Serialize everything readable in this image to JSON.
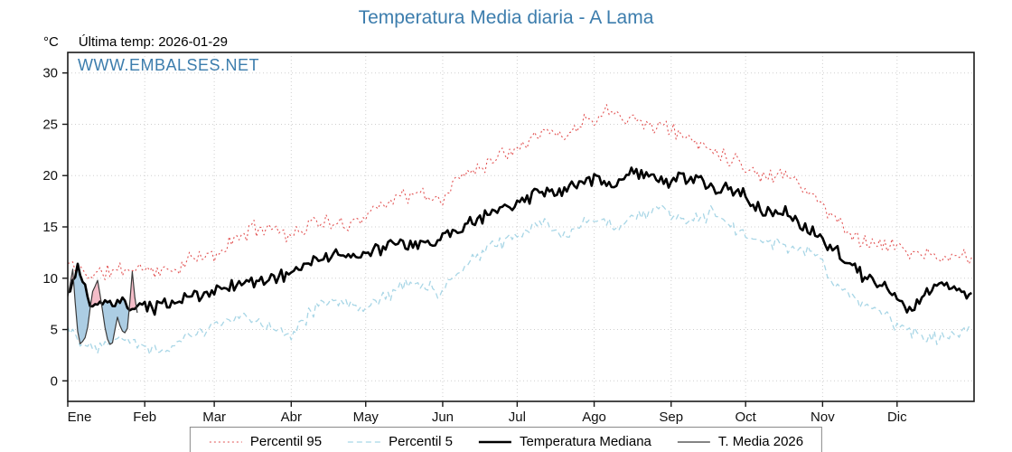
{
  "title": "Temperatura Media diaria - A Lama",
  "y_unit": "°C",
  "last_temp": "Última temp: 2026-01-29",
  "watermark": "WWW.EMBALSES.NET",
  "colors": {
    "title_blue": "#3c7dad",
    "grid": "#cfcfcf",
    "axis": "#1a1a1a",
    "fill_below": "#a3c8e0",
    "fill_above": "#f3b6c2"
  },
  "legend": [
    {
      "label": "Percentil 95"
    },
    {
      "label": "Percentil 5"
    },
    {
      "label": "Temperatura Mediana"
    },
    {
      "label": "T. Media 2026"
    }
  ],
  "chart_data": {
    "type": "line",
    "title": "Temperatura Media diaria - A Lama",
    "x_unit": "day_of_year",
    "months": [
      "Ene",
      "Feb",
      "Mar",
      "Abr",
      "May",
      "Jun",
      "Jul",
      "Ago",
      "Sep",
      "Oct",
      "Nov",
      "Dic"
    ],
    "month_start_days": [
      0,
      31,
      59,
      90,
      120,
      151,
      181,
      212,
      243,
      273,
      304,
      334
    ],
    "days_in_year": 365,
    "ylim": [
      -2,
      32
    ],
    "yticks": [
      0,
      5,
      10,
      15,
      20,
      25,
      30
    ],
    "anchors_x": [
      0,
      4,
      10,
      20,
      30,
      40,
      50,
      60,
      70,
      80,
      90,
      100,
      110,
      120,
      130,
      140,
      150,
      160,
      170,
      180,
      190,
      200,
      210,
      220,
      230,
      240,
      250,
      260,
      270,
      280,
      290,
      300,
      310,
      320,
      330,
      340,
      350,
      364
    ],
    "series": [
      {
        "name": "Percentil 95",
        "color": "#e25252",
        "style": "dotted",
        "width": 1.1,
        "anchor_values": [
          11.4,
          11.0,
          10.3,
          10.8,
          11.0,
          10.6,
          11.8,
          12.3,
          14.3,
          15.2,
          14.2,
          15.6,
          15.0,
          16.2,
          17.8,
          18.2,
          17.6,
          20.3,
          21.4,
          22.8,
          24.4,
          23.8,
          25.6,
          26.5,
          25.2,
          24.8,
          23.6,
          22.6,
          21.4,
          19.8,
          20.4,
          18.0,
          15.6,
          13.6,
          13.2,
          12.6,
          11.8,
          12.3
        ]
      },
      {
        "name": "Percentil 5",
        "color": "#a8d6e6",
        "style": "dashed",
        "width": 1.3,
        "anchor_values": [
          5.4,
          4.2,
          3.2,
          4.6,
          3.4,
          3.0,
          4.6,
          5.4,
          6.2,
          5.6,
          4.6,
          7.2,
          7.6,
          7.2,
          8.6,
          9.8,
          8.4,
          11.2,
          13.0,
          14.2,
          15.2,
          14.4,
          15.6,
          15.2,
          16.2,
          16.8,
          15.2,
          16.6,
          14.4,
          13.6,
          13.0,
          12.6,
          9.2,
          7.4,
          6.2,
          4.6,
          4.2,
          5.4
        ]
      },
      {
        "name": "Temperatura Mediana",
        "color": "#000000",
        "style": "solid",
        "width": 2.6,
        "anchor_values": [
          8.4,
          10.8,
          7.2,
          7.6,
          7.0,
          7.4,
          8.2,
          8.8,
          9.6,
          9.8,
          10.6,
          11.8,
          12.4,
          12.2,
          13.4,
          13.0,
          13.8,
          15.2,
          16.4,
          17.2,
          18.2,
          18.4,
          19.6,
          19.2,
          20.4,
          19.4,
          19.8,
          18.8,
          18.4,
          16.6,
          16.2,
          14.6,
          12.6,
          10.2,
          8.8,
          7.0,
          9.6,
          8.4
        ]
      },
      {
        "name": "T. Media 2026",
        "color": "#3a3a3a",
        "style": "solid",
        "width": 1.2,
        "x": [
          0,
          2,
          4,
          6,
          8,
          10,
          12,
          14,
          16,
          18,
          20,
          22,
          24,
          26,
          28
        ],
        "values": [
          8.2,
          10.8,
          4.6,
          3.4,
          5.2,
          8.8,
          9.6,
          6.8,
          4.2,
          3.6,
          6.4,
          4.4,
          5.0,
          10.4,
          6.6
        ]
      }
    ]
  }
}
